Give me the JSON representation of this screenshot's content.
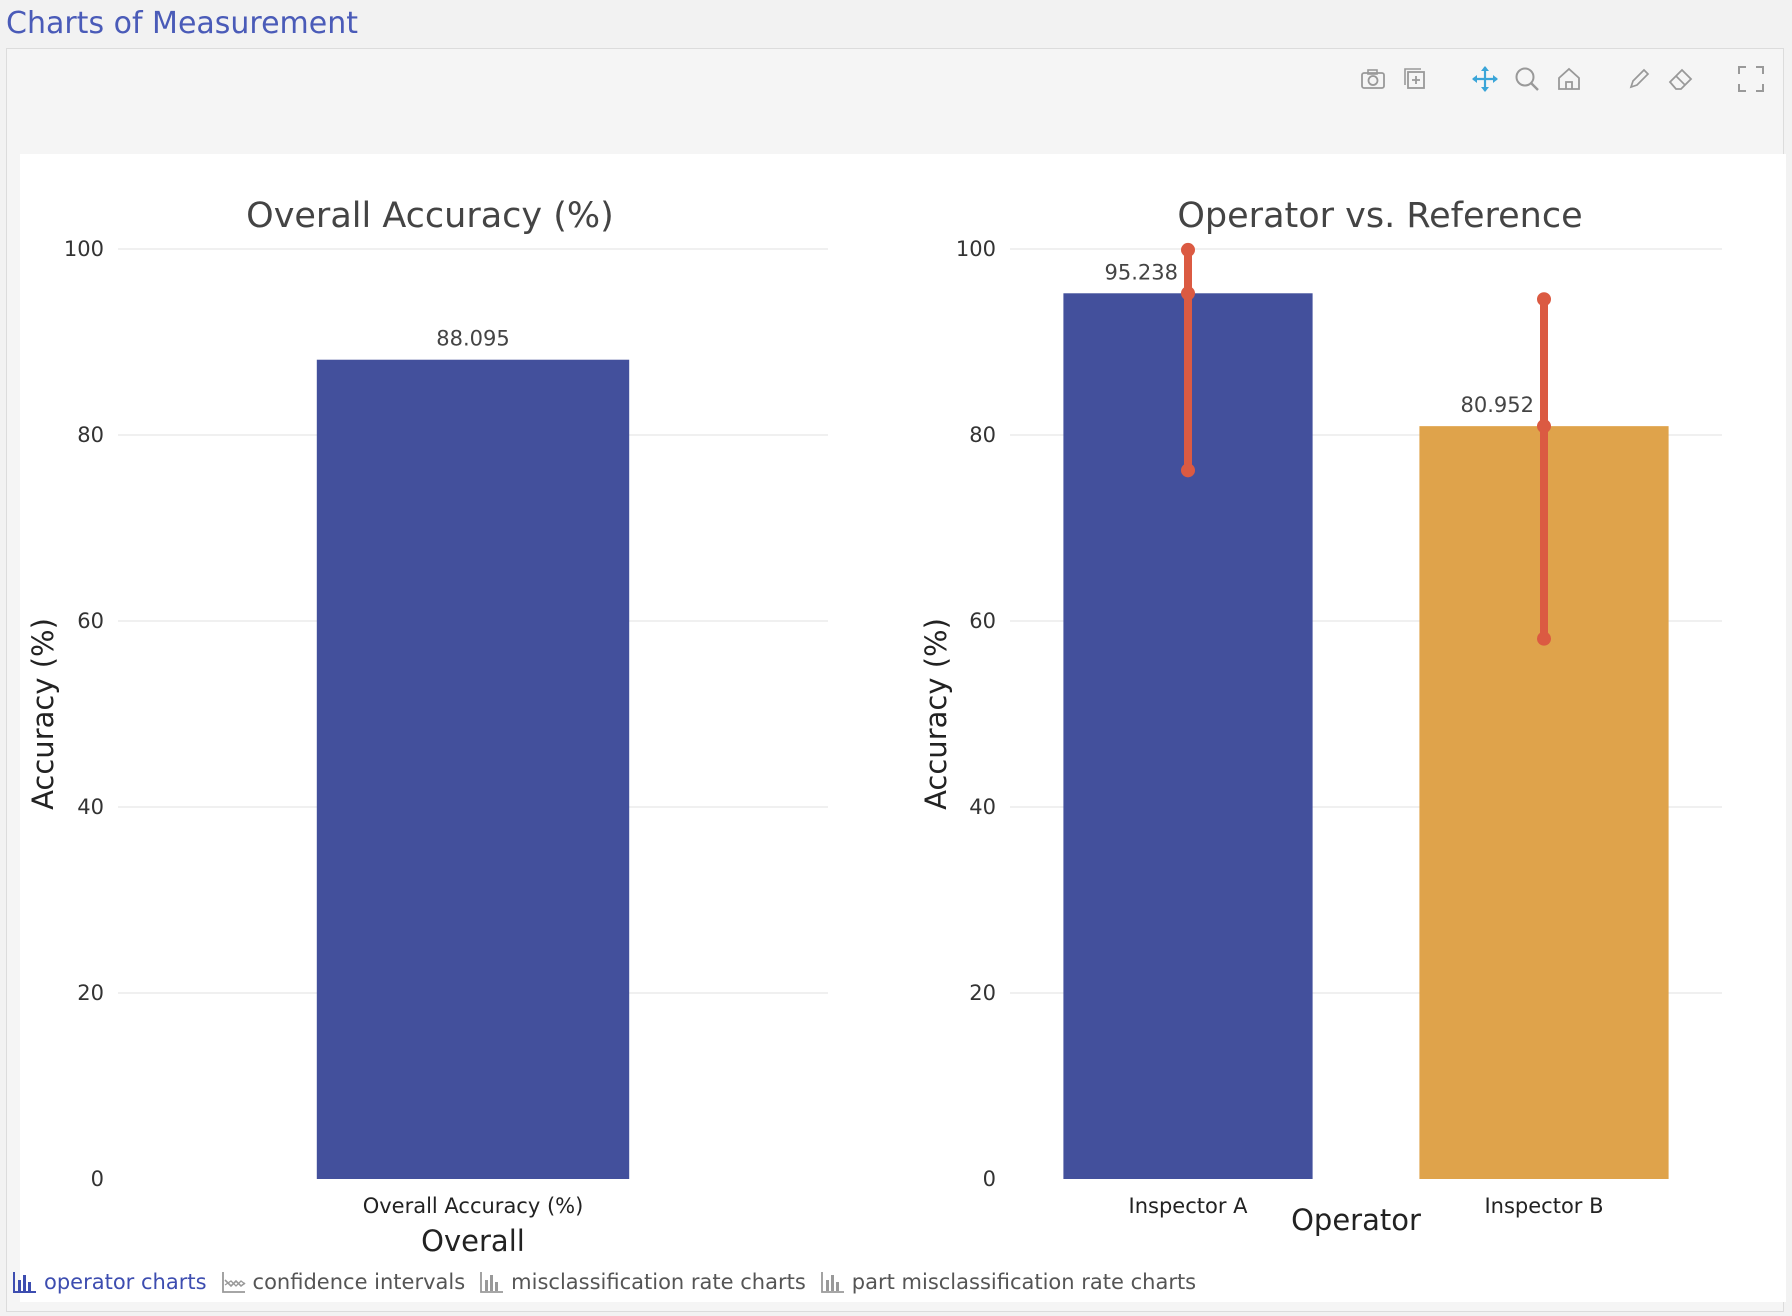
{
  "page": {
    "title": "Charts of Measurement"
  },
  "modebar": {
    "icons": [
      "camera-icon",
      "plus-box-icon",
      "pan-icon",
      "zoom-icon",
      "home-icon",
      "pencil-icon",
      "eraser-icon",
      "fullscreen-icon"
    ]
  },
  "colors": {
    "blue": "#43509c",
    "orange": "#dfa34b",
    "error": "#db5a42",
    "accent": "#3d4db0"
  },
  "chart_data": [
    {
      "type": "bar",
      "title": "Overall Accuracy (%)",
      "xlabel": "Overall",
      "ylabel": "Accuracy (%)",
      "ylim": [
        0,
        100
      ],
      "yticks": [
        0,
        20,
        40,
        60,
        80,
        100
      ],
      "categories": [
        "Overall Accuracy (%)"
      ],
      "values": [
        88.095
      ],
      "value_labels": [
        "88.095"
      ],
      "colors": [
        "#43509c"
      ],
      "grid": true
    },
    {
      "type": "bar",
      "title": "Operator vs. Reference",
      "xlabel": "Operator",
      "ylabel": "Accuracy (%)",
      "ylim": [
        0,
        100
      ],
      "yticks": [
        0,
        20,
        40,
        60,
        80,
        100
      ],
      "categories": [
        "Inspector A",
        "Inspector B"
      ],
      "values": [
        95.238,
        80.952
      ],
      "value_labels": [
        "95.238",
        "80.952"
      ],
      "colors": [
        "#43509c",
        "#dfa34b"
      ],
      "error_bars": [
        {
          "low": 76.2,
          "high": 99.9
        },
        {
          "low": 58.1,
          "high": 94.6
        }
      ],
      "grid": true
    }
  ],
  "tabs": [
    {
      "label": "operator charts",
      "active": true
    },
    {
      "label": "confidence intervals",
      "active": false
    },
    {
      "label": "misclassification rate charts",
      "active": false
    },
    {
      "label": "part misclassification rate charts",
      "active": false
    }
  ]
}
